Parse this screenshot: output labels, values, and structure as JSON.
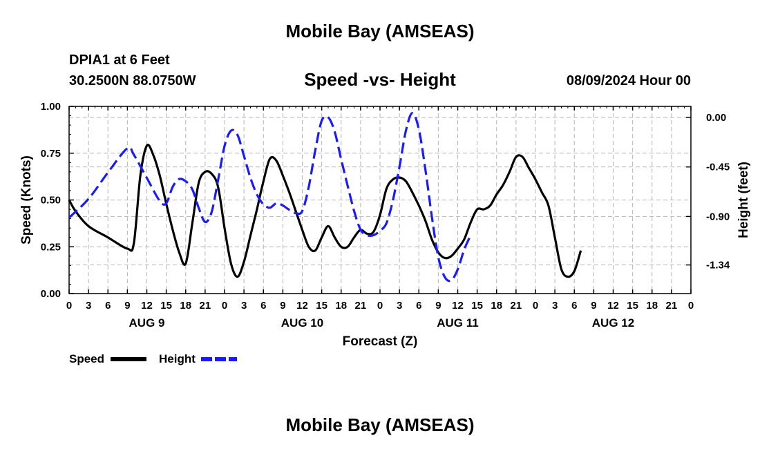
{
  "header": {
    "title": "Mobile Bay (AMSEAS)",
    "station": "DPIA1 at 6 Feet",
    "coords": "30.2500N  88.0750W",
    "chart_title": "Speed -vs- Height",
    "run_time": "08/09/2024 Hour 00"
  },
  "footer": {
    "title": "Mobile Bay (AMSEAS)"
  },
  "chart_data": {
    "type": "line",
    "title": "Speed -vs- Height",
    "xlabel": "Forecast (Z)",
    "ylabel": "Speed (Knots)",
    "ylabel_right": "Height (feet)",
    "grid": true,
    "x_unit": "hours since 08/09/2024 00Z",
    "xlim": [
      0,
      96
    ],
    "ylim": [
      0,
      1.0
    ],
    "ylim_right": [
      -1.6,
      0.1
    ],
    "x_ticks": [
      0,
      3,
      6,
      9,
      12,
      15,
      18,
      21,
      24,
      27,
      30,
      33,
      36,
      39,
      42,
      45,
      48,
      51,
      54,
      57,
      60,
      63,
      66,
      69,
      72,
      75,
      78,
      81,
      84,
      87,
      90,
      93,
      96
    ],
    "x_tick_labels": [
      "0",
      "3",
      "6",
      "9",
      "12",
      "15",
      "18",
      "21",
      "0",
      "3",
      "6",
      "9",
      "12",
      "15",
      "18",
      "21",
      "0",
      "3",
      "6",
      "9",
      "12",
      "15",
      "18",
      "21",
      "0",
      "3",
      "6",
      "9",
      "12",
      "15",
      "18",
      "21",
      "0"
    ],
    "day_labels": [
      {
        "x": 12,
        "label": "AUG 9"
      },
      {
        "x": 36,
        "label": "AUG 10"
      },
      {
        "x": 60,
        "label": "AUG 11"
      },
      {
        "x": 84,
        "label": "AUG 12"
      }
    ],
    "y_ticks": [
      0,
      0.25,
      0.5,
      0.75,
      1.0
    ],
    "y_tick_labels": [
      "0.00",
      "0.25",
      "0.50",
      "0.75",
      "1.00"
    ],
    "y_ticks_right": [
      0.0,
      -0.45,
      -0.9,
      -1.34
    ],
    "y_tick_labels_right": [
      "0.00",
      "-0.45",
      "-0.90",
      "-1.34"
    ],
    "series": [
      {
        "name": "Speed",
        "axis": "left",
        "color": "#000000",
        "dash": "solid",
        "points": [
          [
            0,
            0.5
          ],
          [
            1,
            0.44
          ],
          [
            3,
            0.36
          ],
          [
            6,
            0.3
          ],
          [
            9,
            0.24
          ],
          [
            10,
            0.27
          ],
          [
            11,
            0.63
          ],
          [
            12,
            0.79
          ],
          [
            13,
            0.74
          ],
          [
            14,
            0.63
          ],
          [
            15,
            0.48
          ],
          [
            16,
            0.34
          ],
          [
            17,
            0.22
          ],
          [
            18,
            0.16
          ],
          [
            19,
            0.37
          ],
          [
            20,
            0.59
          ],
          [
            21,
            0.65
          ],
          [
            22,
            0.64
          ],
          [
            23,
            0.57
          ],
          [
            24,
            0.35
          ],
          [
            25,
            0.16
          ],
          [
            26,
            0.09
          ],
          [
            27,
            0.17
          ],
          [
            28,
            0.31
          ],
          [
            29,
            0.45
          ],
          [
            30,
            0.6
          ],
          [
            31,
            0.72
          ],
          [
            32,
            0.71
          ],
          [
            33,
            0.63
          ],
          [
            34,
            0.54
          ],
          [
            35,
            0.44
          ],
          [
            36,
            0.34
          ],
          [
            37,
            0.25
          ],
          [
            38,
            0.23
          ],
          [
            39,
            0.3
          ],
          [
            40,
            0.36
          ],
          [
            41,
            0.3
          ],
          [
            42,
            0.25
          ],
          [
            43,
            0.25
          ],
          [
            44,
            0.3
          ],
          [
            45,
            0.34
          ],
          [
            46,
            0.32
          ],
          [
            47,
            0.33
          ],
          [
            48,
            0.42
          ],
          [
            49,
            0.56
          ],
          [
            50,
            0.61
          ],
          [
            51,
            0.62
          ],
          [
            52,
            0.6
          ],
          [
            53,
            0.54
          ],
          [
            54,
            0.47
          ],
          [
            55,
            0.39
          ],
          [
            56,
            0.29
          ],
          [
            57,
            0.22
          ],
          [
            58,
            0.19
          ],
          [
            59,
            0.2
          ],
          [
            60,
            0.24
          ],
          [
            61,
            0.29
          ],
          [
            62,
            0.38
          ],
          [
            63,
            0.45
          ],
          [
            64,
            0.45
          ],
          [
            65,
            0.47
          ],
          [
            66,
            0.53
          ],
          [
            67,
            0.58
          ],
          [
            68,
            0.65
          ],
          [
            69,
            0.73
          ],
          [
            70,
            0.73
          ],
          [
            71,
            0.67
          ],
          [
            72,
            0.61
          ],
          [
            73,
            0.54
          ],
          [
            74,
            0.47
          ],
          [
            75,
            0.3
          ],
          [
            76,
            0.13
          ],
          [
            77,
            0.09
          ],
          [
            78,
            0.12
          ],
          [
            79,
            0.23
          ]
        ]
      },
      {
        "name": "Height",
        "axis": "right",
        "color": "#1a1aff",
        "dash": "dashed",
        "points": [
          [
            0,
            -0.91
          ],
          [
            3,
            -0.74
          ],
          [
            6,
            -0.5
          ],
          [
            9,
            -0.28
          ],
          [
            10,
            -0.34
          ],
          [
            12,
            -0.55
          ],
          [
            14,
            -0.76
          ],
          [
            15,
            -0.78
          ],
          [
            16,
            -0.63
          ],
          [
            17,
            -0.56
          ],
          [
            18,
            -0.58
          ],
          [
            19,
            -0.65
          ],
          [
            20,
            -0.82
          ],
          [
            21,
            -0.95
          ],
          [
            22,
            -0.86
          ],
          [
            23,
            -0.57
          ],
          [
            24,
            -0.26
          ],
          [
            25,
            -0.12
          ],
          [
            26,
            -0.16
          ],
          [
            27,
            -0.35
          ],
          [
            28,
            -0.55
          ],
          [
            29,
            -0.7
          ],
          [
            30,
            -0.79
          ],
          [
            31,
            -0.82
          ],
          [
            32,
            -0.78
          ],
          [
            33,
            -0.8
          ],
          [
            34,
            -0.84
          ],
          [
            35,
            -0.87
          ],
          [
            36,
            -0.85
          ],
          [
            37,
            -0.63
          ],
          [
            38,
            -0.3
          ],
          [
            39,
            -0.03
          ],
          [
            40,
            0.0
          ],
          [
            41,
            -0.13
          ],
          [
            42,
            -0.38
          ],
          [
            43,
            -0.62
          ],
          [
            44,
            -0.85
          ],
          [
            45,
            -1.02
          ],
          [
            46,
            -1.07
          ],
          [
            47,
            -1.07
          ],
          [
            48,
            -1.03
          ],
          [
            49,
            -0.96
          ],
          [
            50,
            -0.75
          ],
          [
            51,
            -0.45
          ],
          [
            52,
            -0.12
          ],
          [
            53,
            0.04
          ],
          [
            54,
            -0.11
          ],
          [
            55,
            -0.47
          ],
          [
            56,
            -0.9
          ],
          [
            57,
            -1.27
          ],
          [
            58,
            -1.45
          ],
          [
            59,
            -1.48
          ],
          [
            60,
            -1.38
          ],
          [
            61,
            -1.2
          ],
          [
            62,
            -1.07
          ]
        ]
      }
    ],
    "legend": [
      {
        "label": "Speed",
        "color": "#000000",
        "dash": "solid"
      },
      {
        "label": "Height",
        "color": "#1a1aff",
        "dash": "dashed"
      }
    ]
  }
}
